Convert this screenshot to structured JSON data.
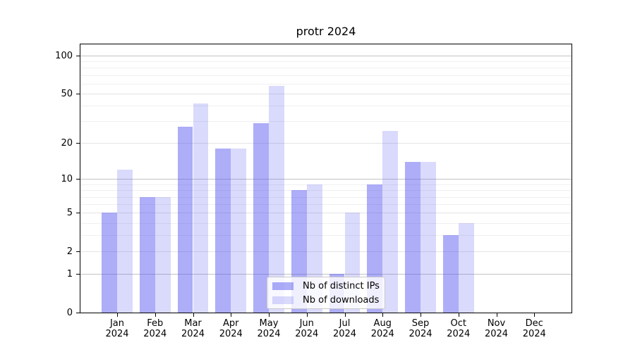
{
  "title": "protr 2024",
  "chart_data": {
    "type": "bar",
    "title": "protr 2024",
    "categories": [
      "Jan",
      "Feb",
      "Mar",
      "Apr",
      "May",
      "Jun",
      "Jul",
      "Aug",
      "Sep",
      "Oct",
      "Nov",
      "Dec"
    ],
    "category_year": "2024",
    "series": [
      {
        "name": "Nb of distinct IPs",
        "color": "rgba(80,80,240,0.47)",
        "values": [
          5,
          7,
          27,
          18,
          29,
          8,
          1,
          9,
          14,
          3,
          0,
          0
        ]
      },
      {
        "name": "Nb of downloads",
        "color": "rgba(80,80,240,0.21)",
        "values": [
          12,
          7,
          42,
          18,
          58,
          9,
          5,
          25,
          14,
          4,
          0,
          0
        ]
      }
    ],
    "yscale": "log1p",
    "ylim": [
      0,
      124
    ],
    "y_ticks": [
      0,
      1,
      2,
      5,
      10,
      20,
      50,
      100
    ],
    "y_major_gridlines": [
      1,
      10,
      100
    ],
    "y_mid_gridlines": [
      2,
      5,
      20,
      50
    ],
    "y_minor_gridlines": [
      3,
      4,
      6,
      7,
      8,
      9,
      30,
      40,
      60,
      70,
      80,
      90
    ],
    "grid": "horizontal",
    "legend_position": "bottom-center"
  },
  "colors": {
    "bar_distinct_ips": "#a9a9f9",
    "bar_downloads": "#d9d9fb",
    "grid_major": "#c3c3c3",
    "grid_mid": "#e3e3e3",
    "grid_minor": "#efefef",
    "axis": "#000000"
  }
}
